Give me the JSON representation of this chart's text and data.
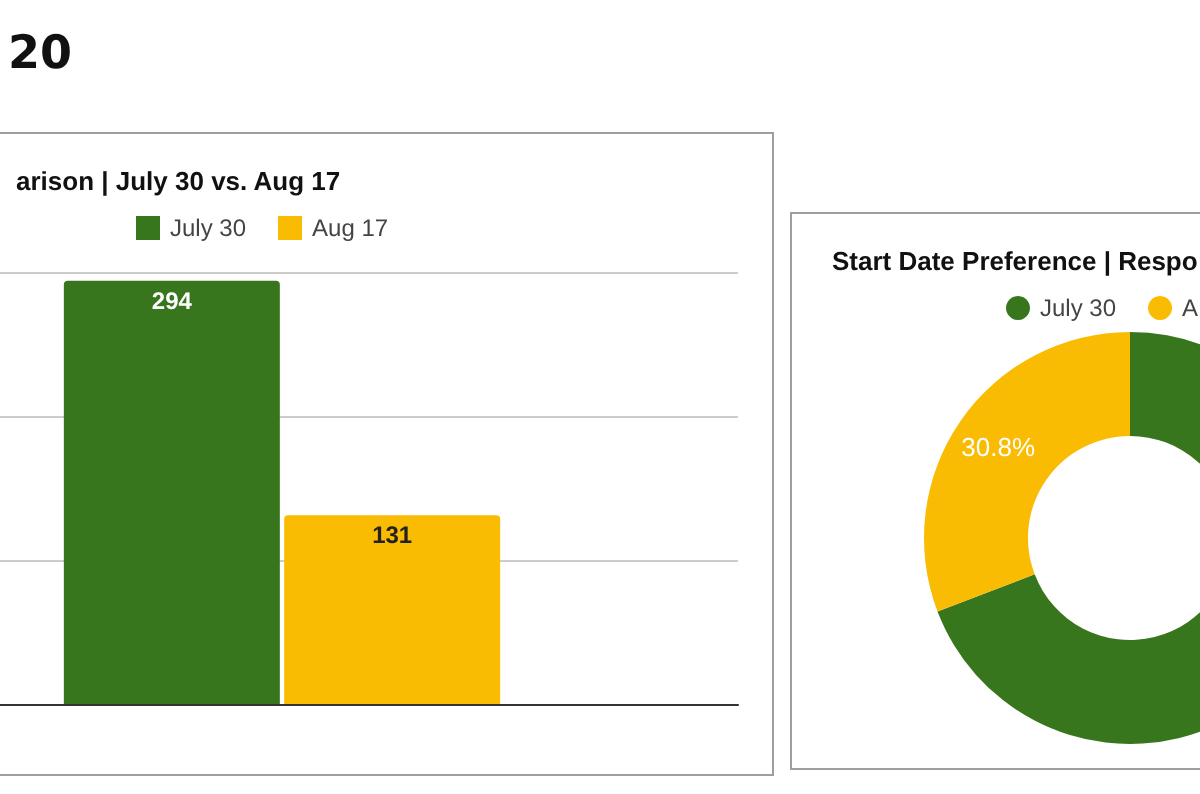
{
  "chart_data": [
    {
      "type": "bar",
      "title": "arison | July 30 vs. Aug 17",
      "annotations": [
        "20"
      ],
      "categories": [
        null
      ],
      "series": [
        {
          "name": "July 30",
          "color": "#38761d",
          "values": [
            294
          ]
        },
        {
          "name": "Aug 17",
          "color": "#f9bc02",
          "values": [
            131
          ]
        }
      ],
      "ylim": [
        0,
        300
      ],
      "yticks": [
        {
          "value": 0,
          "label": null
        },
        {
          "value": 100,
          "label": null
        },
        {
          "value": 200,
          "label": null
        },
        {
          "value": 300,
          "label": null
        }
      ],
      "grid": "y",
      "legend": "top",
      "data_labels": true
    },
    {
      "type": "donut",
      "title": "Start Date Preference | Respo",
      "categories": [
        "July 30",
        "A"
      ],
      "values": [
        69.2,
        30.8
      ],
      "colors": [
        "#38761d",
        "#f9bc02"
      ],
      "value_labels": [
        null,
        "30.8%"
      ],
      "legend": "top"
    }
  ]
}
